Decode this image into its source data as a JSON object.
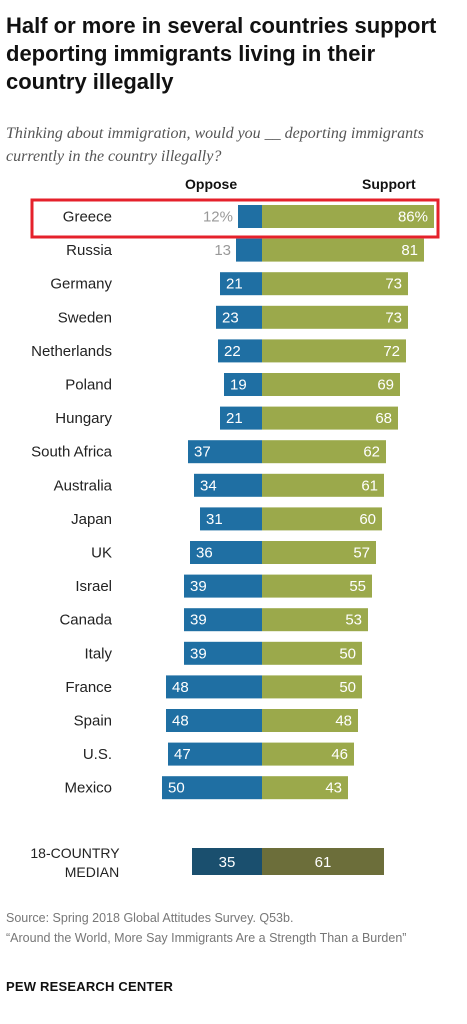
{
  "header": {
    "title": "Half or more in several countries support deporting immigrants living in their country illegally",
    "subtitle": "Thinking about immigration, would you __ deporting immigrants currently in the country illegally?",
    "oppose_label": "Oppose",
    "support_label": "Support"
  },
  "footer": {
    "source": "Source: Spring 2018 Global Attitudes Survey. Q53b.",
    "report": "“Around the World, More Say Immigrants Are a Strength Than a Burden”",
    "brand": "PEW RESEARCH CENTER"
  },
  "colors": {
    "oppose": "#1f6fa3",
    "support": "#9ba94b",
    "median_oppose": "#1a4f6e",
    "median_support": "#6c6e3a",
    "highlight_box": "#e5212b",
    "muted_label": "#999999"
  },
  "chart_data": {
    "type": "bar",
    "orientation": "horizontal diverging",
    "categories": [
      "Greece",
      "Russia",
      "Germany",
      "Sweden",
      "Netherlands",
      "Poland",
      "Hungary",
      "South Africa",
      "Australia",
      "Japan",
      "UK",
      "Israel",
      "Canada",
      "Italy",
      "France",
      "Spain",
      "U.S.",
      "Mexico"
    ],
    "series": [
      {
        "name": "Oppose",
        "values": [
          12,
          13,
          21,
          23,
          22,
          19,
          21,
          37,
          34,
          31,
          36,
          39,
          39,
          39,
          48,
          48,
          47,
          50
        ]
      },
      {
        "name": "Support",
        "values": [
          86,
          81,
          73,
          73,
          72,
          69,
          68,
          62,
          61,
          60,
          57,
          55,
          53,
          50,
          50,
          48,
          46,
          43
        ]
      }
    ],
    "value_labels": {
      "oppose": [
        "12%",
        "13",
        "21",
        "23",
        "22",
        "19",
        "21",
        "37",
        "34",
        "31",
        "36",
        "39",
        "39",
        "39",
        "48",
        "48",
        "47",
        "50"
      ],
      "support": [
        "86%",
        "81",
        "73",
        "73",
        "72",
        "69",
        "68",
        "62",
        "61",
        "60",
        "57",
        "55",
        "53",
        "50",
        "50",
        "48",
        "46",
        "43"
      ]
    },
    "highlighted_category": "Greece",
    "median": {
      "label_lines": [
        "18-COUNTRY",
        "MEDIAN"
      ],
      "oppose": 35,
      "support": 61
    }
  }
}
